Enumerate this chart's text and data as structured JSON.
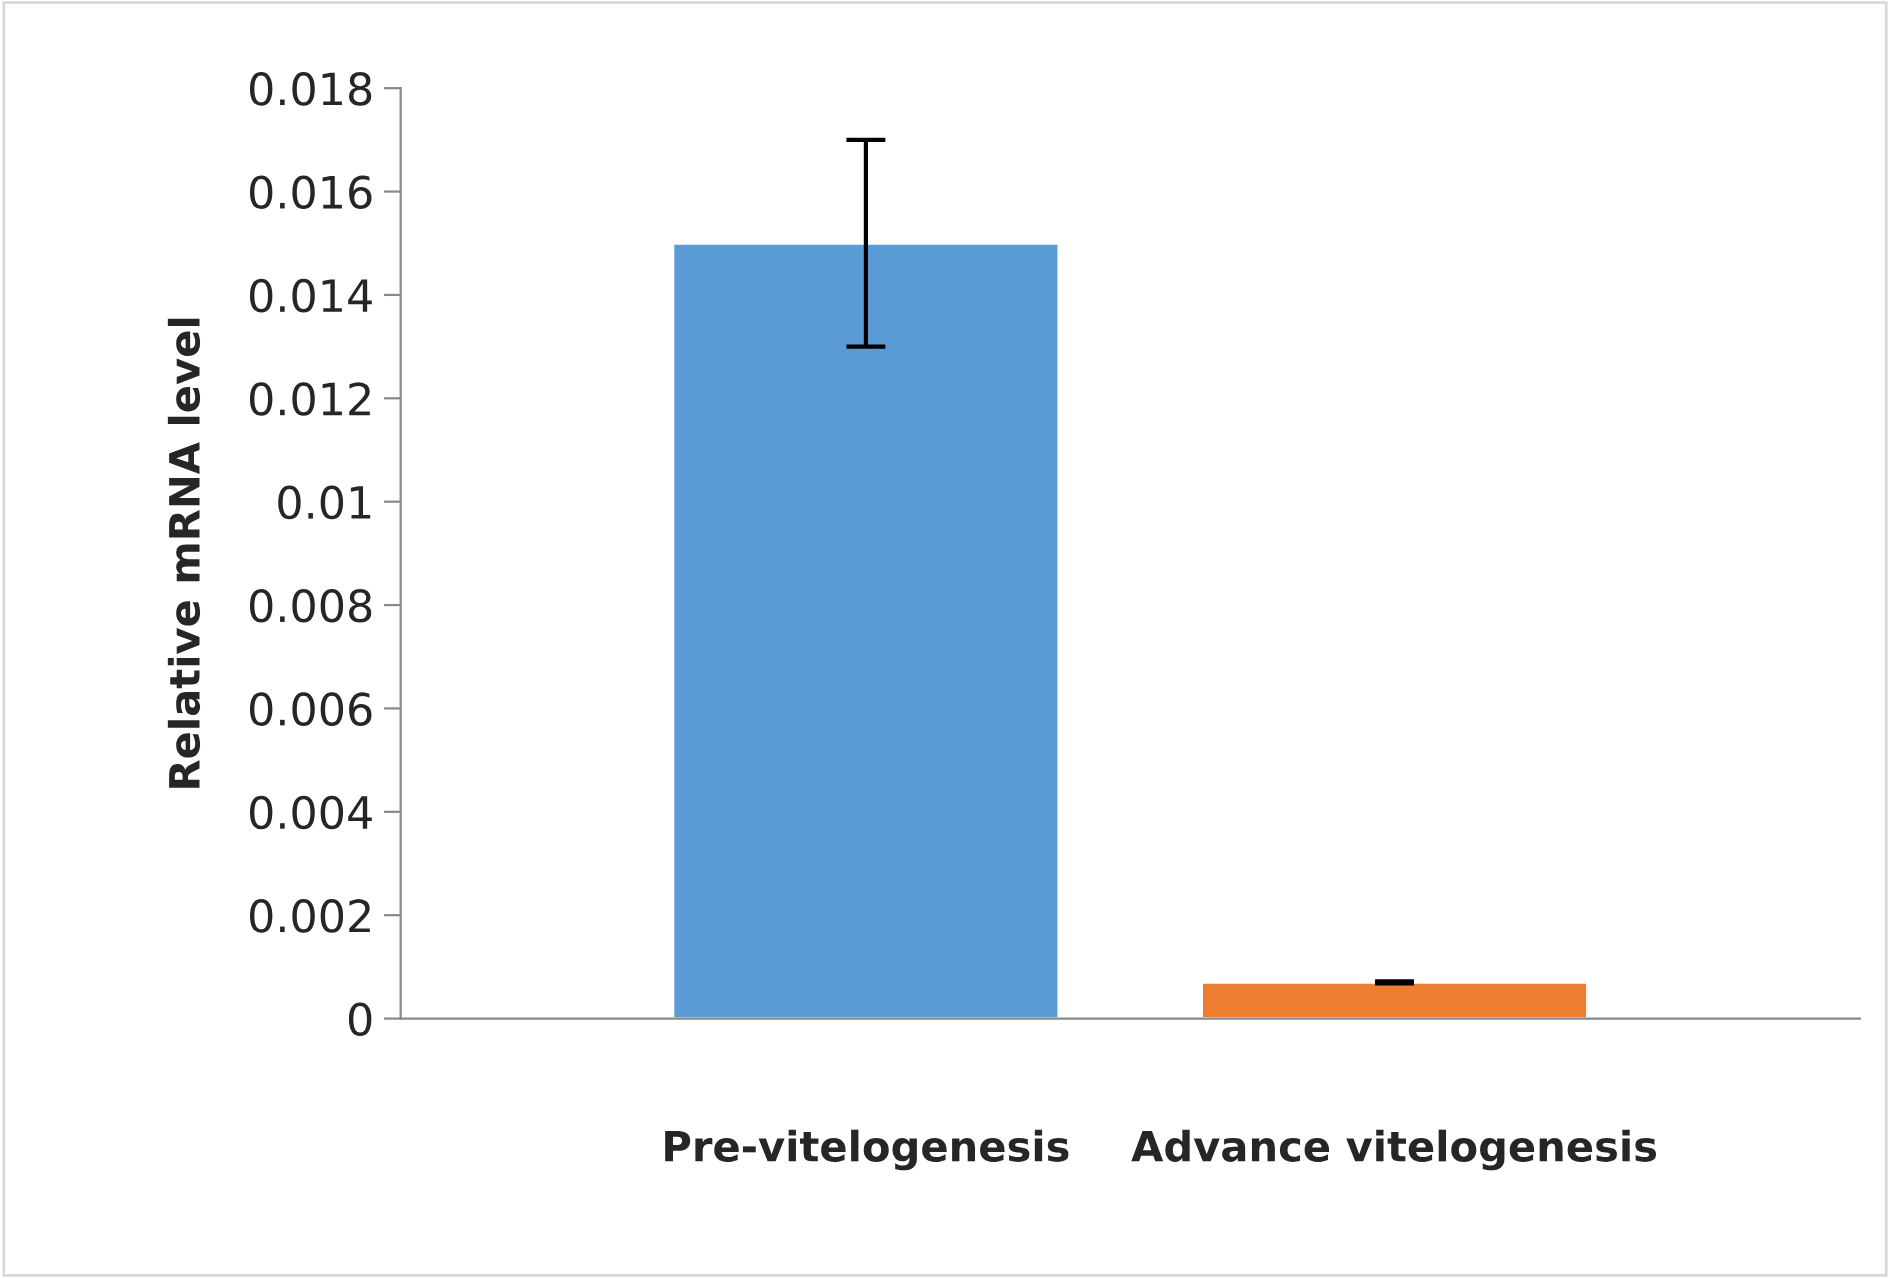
{
  "chart_data": {
    "type": "bar",
    "ylabel": "Relative mRNA level",
    "categories": [
      "Pre-vitelogenesis",
      "Advance vitelogenesis"
    ],
    "values": [
      0.015,
      0.0007
    ],
    "colors": [
      "#5b9bd5",
      "#ed7d31"
    ],
    "errors": [
      0.002,
      2e-05
    ],
    "ylim": [
      0,
      0.018
    ],
    "yticks": [
      0,
      0.002,
      0.004,
      0.006,
      0.008,
      0.01,
      0.012,
      0.014,
      0.016,
      0.018
    ],
    "grid": false,
    "legend": false
  }
}
